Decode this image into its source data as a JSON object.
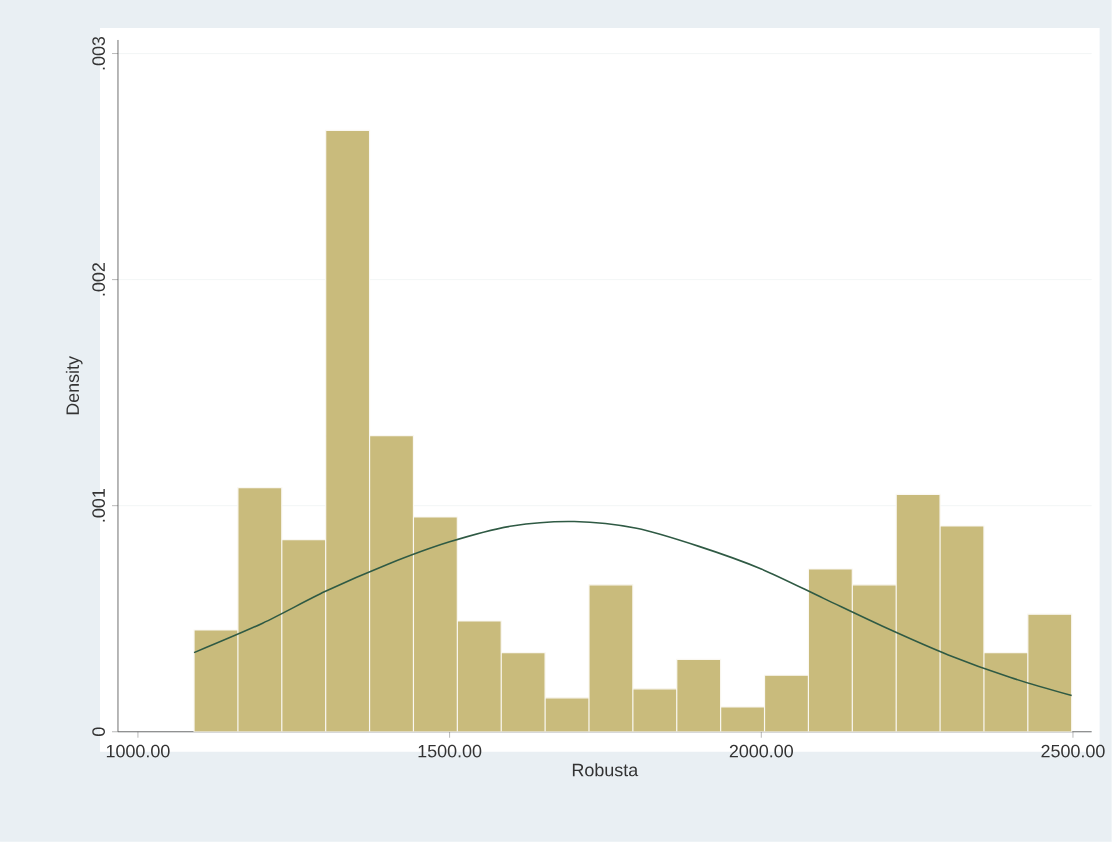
{
  "chart_data": {
    "type": "histogram",
    "xlabel": "Robusta",
    "ylabel": "Density",
    "xlim": [
      968,
      2530
    ],
    "ylim": [
      0,
      0.00306
    ],
    "xticks": [
      {
        "value": 1000,
        "label": "1000.00"
      },
      {
        "value": 1500,
        "label": "1500.00"
      },
      {
        "value": 2000,
        "label": "2000.00"
      },
      {
        "value": 2500,
        "label": "2500.00"
      }
    ],
    "yticks": [
      0,
      {
        "value": 0.001,
        "label": ".001"
      },
      {
        "value": 0.002,
        "label": ".002"
      },
      {
        "value": 0.003,
        "label": ".003"
      }
    ],
    "grid": "y",
    "series": [
      {
        "color": "#c9bb7c",
        "bins": [
          1090,
          1160.4,
          1230.8,
          1301.2,
          1371.6,
          1442,
          1512.4,
          1582.8,
          1653.2,
          1723.6,
          1794,
          1864.4,
          1934.8,
          2005.2,
          2075.6,
          2146,
          2216.4,
          2286.8,
          2357.2,
          2427.6,
          2498
        ],
        "values": [
          0.00045,
          0.00108,
          0.00085,
          0.00266,
          0.00131,
          0.00095,
          0.00049,
          0.00035,
          0.00015,
          0.00065,
          0.00019,
          0.00032,
          0.00011,
          0.00025,
          0.00072,
          0.00065,
          0.00105,
          0.00091,
          0.00035,
          0.00052
        ]
      },
      {
        "type": "line",
        "color": "#2f5a44",
        "x": [
          1090,
          1200,
          1300,
          1400,
          1500,
          1600,
          1700,
          1800,
          1900,
          2000,
          2100,
          2200,
          2300,
          2400,
          2498
        ],
        "values": [
          0.00035,
          0.00048,
          0.00062,
          0.00074,
          0.00084,
          0.00091,
          0.00093,
          0.0009,
          0.00082,
          0.00072,
          0.00059,
          0.00046,
          0.00034,
          0.00024,
          0.00016
        ]
      }
    ]
  }
}
